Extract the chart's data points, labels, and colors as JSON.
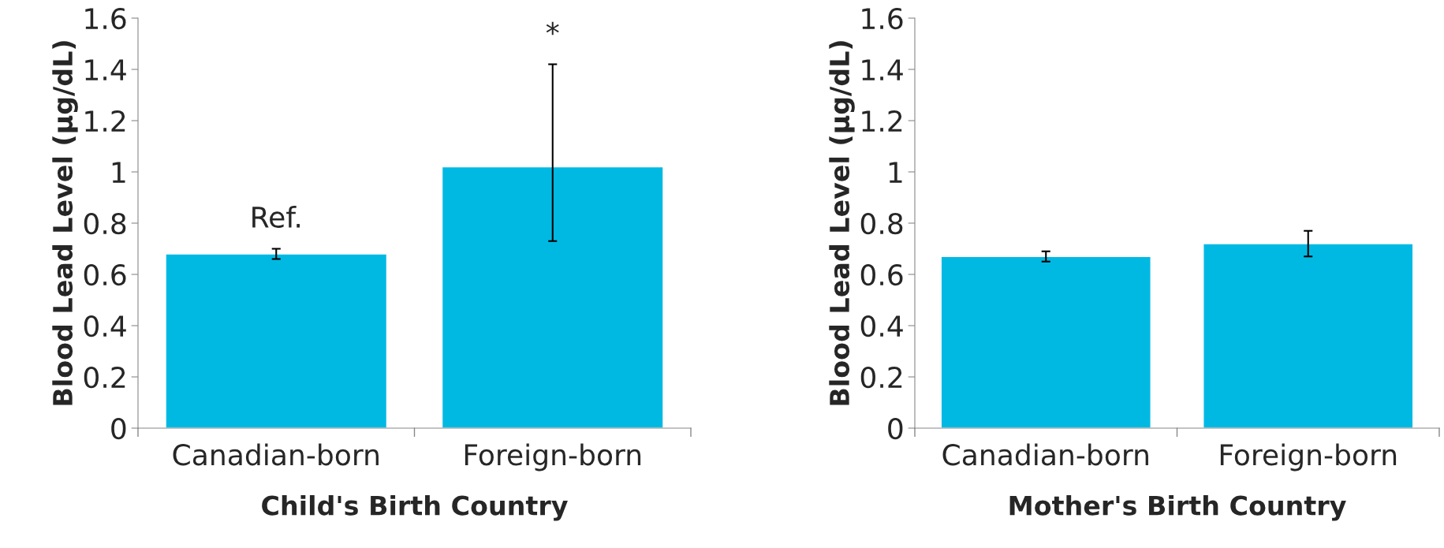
{
  "chart_data": [
    {
      "type": "bar",
      "xlabel": "Child's Birth Country",
      "ylabel": "Blood Lead Level (µg/dL)",
      "categories": [
        "Canadian-born",
        "Foreign-born"
      ],
      "values": [
        0.68,
        1.02
      ],
      "errors": [
        [
          0.66,
          0.7
        ],
        [
          0.73,
          1.42
        ]
      ],
      "color": "#00b9e3",
      "ylim": [
        0,
        1.6
      ],
      "yticks": [
        0,
        0.2,
        0.4,
        0.6,
        0.8,
        1,
        1.2,
        1.4,
        1.6
      ],
      "grid": false,
      "annotations": [
        "Ref.",
        "*"
      ]
    },
    {
      "type": "bar",
      "xlabel": "Mother's Birth Country",
      "ylabel": "Blood Lead Level (µg/dL)",
      "categories": [
        "Canadian-born",
        "Foreign-born"
      ],
      "values": [
        0.67,
        0.72
      ],
      "errors": [
        [
          0.65,
          0.69
        ],
        [
          0.67,
          0.77
        ]
      ],
      "color": "#00b9e3",
      "ylim": [
        0,
        1.6
      ],
      "yticks": [
        0,
        0.2,
        0.4,
        0.6,
        0.8,
        1,
        1.2,
        1.4,
        1.6
      ],
      "grid": false
    }
  ]
}
